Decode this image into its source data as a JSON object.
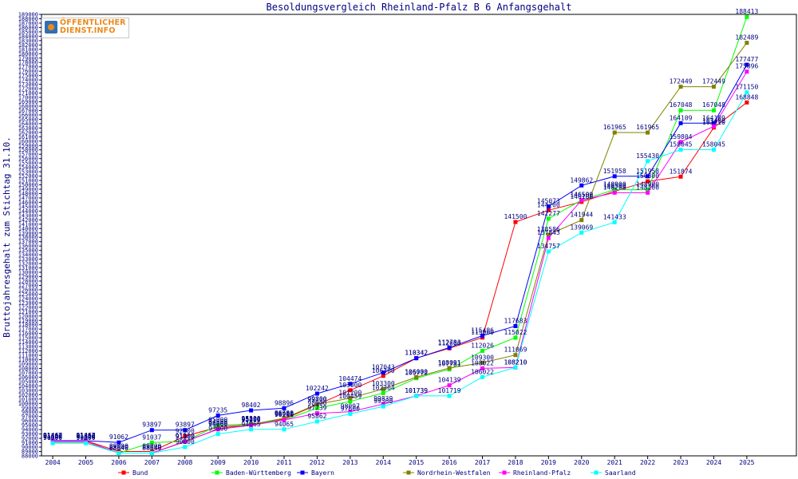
{
  "logo": {
    "line1": "ÖFFENTLICHER",
    "line2": "DIENST.INFO"
  },
  "chart_data": {
    "type": "line",
    "title": "Besoldungsvergleich Rheinland-Pfalz B 6 Anfangsgehalt",
    "xlabel": "",
    "ylabel": "Bruttojahresgehalt zum Stichtag 31.10.",
    "categories": [
      "2004",
      "2005",
      "2006",
      "2007",
      "2008",
      "2009",
      "2010",
      "2011",
      "2012",
      "2013",
      "2014",
      "2015",
      "2016",
      "2017",
      "2018",
      "2019",
      "2020",
      "2021",
      "2022",
      "2023",
      "2024",
      "2025"
    ],
    "ylim": [
      88000,
      189000
    ],
    "ytick_step": 1000,
    "grid": false,
    "legend_position": "bottom",
    "series": [
      {
        "name": "Bund",
        "color": "#ff0000",
        "values": [
          91467,
          91467,
          89000,
          89000,
          92500,
          94600,
          95100,
          96400,
          99700,
          103000,
          106300,
          110342,
          112600,
          115060,
          141500,
          144200,
          146100,
          148500,
          150800,
          151874,
          163110,
          168848
        ]
      },
      {
        "name": "Baden-Württemberg",
        "color": "#00ff00",
        "values": [
          91300,
          91300,
          88640,
          91037,
          91300,
          95000,
          95300,
          96200,
          98900,
          100459,
          102364,
          105772,
          107781,
          112026,
          115022,
          142277,
          146500,
          148900,
          148900,
          167048,
          167048,
          188413
        ]
      },
      {
        "name": "Bayern",
        "color": "#0000ff",
        "values": [
          91462,
          91462,
          91062,
          93897,
          93897,
          97235,
          98402,
          98896,
          102242,
          104474,
          107043,
          110342,
          112783,
          115486,
          117683,
          145073,
          149862,
          151958,
          151958,
          164109,
          164109,
          177477
        ]
      },
      {
        "name": "Nordrhein-Westfalen",
        "color": "#808000",
        "values": [
          91000,
          91000,
          88640,
          88640,
          91200,
          94200,
          95200,
          96600,
          99800,
          101200,
          103300,
          106000,
          108091,
          109300,
          111069,
          138586,
          141944,
          161965,
          161965,
          172449,
          172449,
          182489
        ]
      },
      {
        "name": "Rheinland-Pfalz",
        "color": "#ff00ff",
        "values": [
          91300,
          91300,
          88640,
          88640,
          91300,
          94060,
          95000,
          96200,
          97739,
          98097,
          99839,
          101739,
          104139,
          108022,
          108210,
          137843,
          146500,
          148200,
          148200,
          159804,
          163400,
          175896
        ]
      },
      {
        "name": "Saarland",
        "color": "#00ffff",
        "values": [
          90900,
          90900,
          88640,
          88640,
          90000,
          93000,
          94065,
          94065,
          95862,
          97600,
          99300,
          101739,
          101719,
          106022,
          108210,
          134757,
          139069,
          141433,
          155430,
          158045,
          158045,
          171150
        ]
      }
    ]
  }
}
